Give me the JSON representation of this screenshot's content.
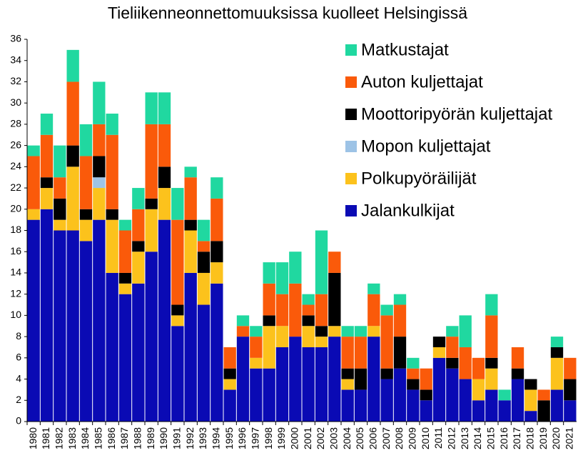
{
  "chart_data": {
    "type": "stacked_bar",
    "title": "Tieliikenneonnettomuuksissa kuolleet Helsingissä",
    "categories": [
      "1980",
      "1981",
      "1982",
      "1983",
      "1984",
      "1985",
      "1986",
      "1987",
      "1988",
      "1989",
      "1990",
      "1991",
      "1992",
      "1993",
      "1994",
      "1995",
      "1996",
      "1997",
      "1998",
      "1999",
      "2000",
      "2001",
      "2002",
      "2003",
      "2004",
      "2005",
      "2006",
      "2007",
      "2008",
      "2009",
      "2010",
      "2011",
      "2012",
      "2013",
      "2014",
      "2015",
      "2016",
      "2017",
      "2018",
      "2019",
      "2020",
      "2021"
    ],
    "series": [
      {
        "name": "Jalankulkijat",
        "color": "#0a0ab4",
        "values": [
          19,
          20,
          18,
          18,
          17,
          19,
          14,
          12,
          13,
          16,
          19,
          9,
          14,
          11,
          13,
          3,
          8,
          5,
          5,
          7,
          8,
          7,
          7,
          8,
          3,
          3,
          8,
          4,
          5,
          3,
          2,
          6,
          5,
          4,
          2,
          3,
          2,
          4,
          1,
          0,
          3,
          2
        ]
      },
      {
        "name": "Polkupyöräilijät",
        "color": "#fcc21c",
        "values": [
          1,
          2,
          1,
          6,
          2,
          3,
          5,
          1,
          3,
          4,
          3,
          1,
          4,
          3,
          2,
          1,
          0,
          1,
          4,
          2,
          0,
          2,
          1,
          1,
          1,
          0,
          1,
          0,
          0,
          0,
          0,
          1,
          0,
          0,
          2,
          2,
          0,
          0,
          2,
          0,
          3,
          0
        ]
      },
      {
        "name": "Mopon kuljettajat",
        "color": "#9dc3e6",
        "values": [
          0,
          0,
          0,
          0,
          0,
          1,
          0,
          0,
          0,
          0,
          0,
          0,
          0,
          0,
          0,
          0,
          0,
          0,
          0,
          0,
          0,
          0,
          0,
          0,
          0,
          0,
          0,
          0,
          0,
          0,
          0,
          0,
          0,
          0,
          0,
          0,
          0,
          0,
          0,
          0,
          0,
          0
        ]
      },
      {
        "name": "Moottoripyörän kuljettajat",
        "color": "#000000",
        "values": [
          0,
          1,
          2,
          2,
          1,
          2,
          1,
          1,
          1,
          1,
          2,
          1,
          1,
          2,
          2,
          1,
          0,
          0,
          1,
          0,
          0,
          1,
          1,
          5,
          1,
          2,
          0,
          1,
          3,
          1,
          1,
          1,
          1,
          0,
          0,
          1,
          0,
          1,
          1,
          2,
          1,
          2
        ]
      },
      {
        "name": "Auton kuljettajat",
        "color": "#fa5a0a",
        "values": [
          5,
          4,
          2,
          6,
          5,
          3,
          7,
          4,
          3,
          7,
          4,
          8,
          4,
          1,
          4,
          2,
          1,
          2,
          3,
          3,
          5,
          1,
          3,
          2,
          3,
          3,
          3,
          5,
          3,
          1,
          2,
          0,
          2,
          3,
          2,
          4,
          0,
          2,
          0,
          1,
          0,
          2
        ]
      },
      {
        "name": "Matkustajat",
        "color": "#20d8a0",
        "values": [
          1,
          2,
          3,
          3,
          3,
          4,
          2,
          1,
          2,
          3,
          3,
          3,
          1,
          2,
          2,
          0,
          1,
          1,
          2,
          3,
          3,
          1,
          6,
          0,
          1,
          1,
          1,
          1,
          1,
          1,
          0,
          0,
          1,
          3,
          0,
          2,
          1,
          0,
          0,
          0,
          1,
          0
        ]
      }
    ],
    "ylim": [
      0,
      36
    ],
    "yticks": [
      0,
      2,
      4,
      6,
      8,
      10,
      12,
      14,
      16,
      18,
      20,
      22,
      24,
      26,
      28,
      30,
      32,
      34,
      36
    ],
    "grid": false
  }
}
